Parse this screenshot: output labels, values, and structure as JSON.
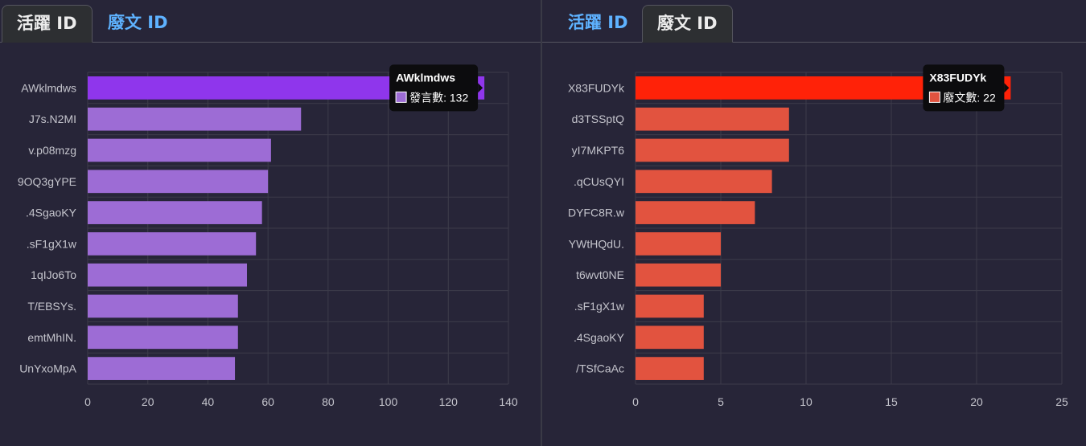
{
  "left_panel": {
    "tabs": [
      {
        "label": "活躍 ID",
        "active": true
      },
      {
        "label": "廢文 ID",
        "active": false
      }
    ]
  },
  "right_panel": {
    "tabs": [
      {
        "label": "活躍 ID",
        "active": false
      },
      {
        "label": "廢文 ID",
        "active": true
      }
    ]
  },
  "colors": {
    "background": "#272538",
    "grid": "#3d3c4a",
    "left_bar": "#9d6cd5",
    "left_bar_highlight": "#8f36ec",
    "right_bar": "#e2533f",
    "right_bar_highlight": "#ff2208",
    "tab_active_text": "#ececec",
    "tab_inactive_text": "#5eb2ff"
  },
  "chart_data": [
    {
      "type": "bar",
      "orientation": "horizontal",
      "categories": [
        "AWklmdws",
        "J7s.N2MI",
        "v.p08mzg",
        "9OQ3gYPE",
        ".4SgaoKY",
        ".sF1gX1w",
        "1qIJo6To",
        "T/EBSYs.",
        "emtMhIN.",
        "UnYxoMpA"
      ],
      "series": [
        {
          "name": "發言數",
          "values": [
            132,
            71,
            61,
            60,
            58,
            56,
            53,
            50,
            50,
            49
          ]
        }
      ],
      "xlim": [
        0,
        140
      ],
      "xticks": [
        0,
        20,
        40,
        60,
        80,
        100,
        120,
        140
      ],
      "grid": true,
      "highlighted_index": 0,
      "tooltip": {
        "title": "AWklmdws",
        "label": "發言數: 132"
      }
    },
    {
      "type": "bar",
      "orientation": "horizontal",
      "categories": [
        "X83FUDYk",
        "d3TSSptQ",
        "yI7MKPT6",
        ".qCUsQYI",
        "DYFC8R.w",
        "YWtHQdU.",
        "t6wvt0NE",
        ".sF1gX1w",
        ".4SgaoKY",
        "/TSfCaAc"
      ],
      "series": [
        {
          "name": "廢文數",
          "values": [
            22,
            9,
            9,
            8,
            7,
            5,
            5,
            4,
            4,
            4
          ]
        }
      ],
      "xlim": [
        0,
        25
      ],
      "xticks": [
        0,
        5,
        10,
        15,
        20,
        25
      ],
      "grid": true,
      "highlighted_index": 0,
      "tooltip": {
        "title": "X83FUDYk",
        "label": "廢文數: 22"
      }
    }
  ]
}
